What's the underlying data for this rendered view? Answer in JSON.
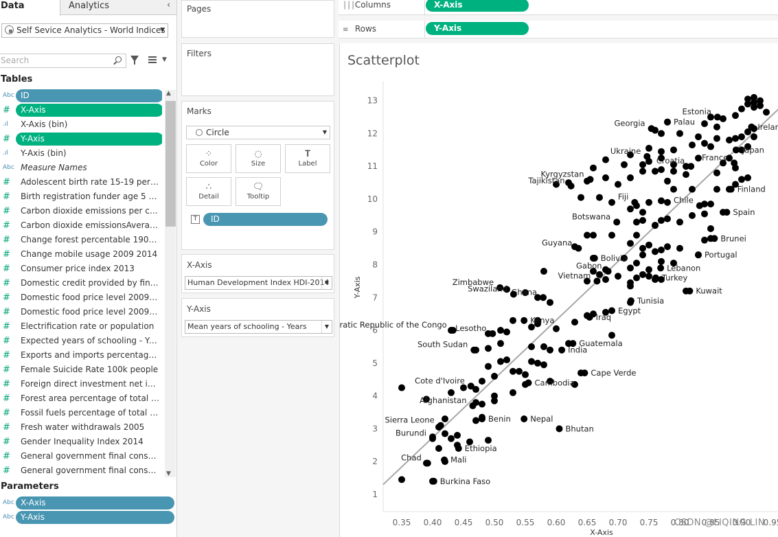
{
  "tabs": {
    "data": "Data",
    "analytics": "Analytics"
  },
  "datasource": {
    "name": "Self Sevice Analytics - World Indices"
  },
  "search": {
    "placeholder": "Search"
  },
  "sections": {
    "tables": "Tables",
    "parameters": "Parameters"
  },
  "fields": [
    {
      "icon": "Abc",
      "label": "ID",
      "style": "pill-blue"
    },
    {
      "icon": "#",
      "label": "X-Axis",
      "style": "pill-green"
    },
    {
      "icon": ".ıl",
      "label": "X-Axis (bin)",
      "style": "plain"
    },
    {
      "icon": "#",
      "label": "Y-Axis",
      "style": "pill-green"
    },
    {
      "icon": ".ıl",
      "label": "Y-Axis (bin)",
      "style": "plain"
    },
    {
      "icon": "Abc",
      "label": "Measure Names",
      "style": "italic"
    },
    {
      "icon": "#",
      "label": "Adolescent birth rate 15-19 per 100...",
      "style": "plain"
    },
    {
      "icon": "#",
      "label": "Birth registration funder age 5 200...",
      "style": "plain"
    },
    {
      "icon": "#",
      "label": "Carbon dioxide emissions per capit...",
      "style": "plain"
    },
    {
      "icon": "#",
      "label": "Carbon dioxide emissionsAverage ...",
      "style": "plain"
    },
    {
      "icon": "#",
      "label": "Change forest percentable 1900 to...",
      "style": "plain"
    },
    {
      "icon": "#",
      "label": "Change mobile usage 2009 2014",
      "style": "plain"
    },
    {
      "icon": "#",
      "label": "Consumer price index 2013",
      "style": "plain"
    },
    {
      "icon": "#",
      "label": "Domestic credit provided by financ...",
      "style": "plain"
    },
    {
      "icon": "#",
      "label": "Domestic food price level 2009 20...",
      "style": "plain"
    },
    {
      "icon": "#",
      "label": "Domestic food price level 2009-20...",
      "style": "plain"
    },
    {
      "icon": "#",
      "label": "Electrification rate or population",
      "style": "plain"
    },
    {
      "icon": "#",
      "label": "Expected years of schooling - Years",
      "style": "plain"
    },
    {
      "icon": "#",
      "label": "Exports and imports percentage G...",
      "style": "plain"
    },
    {
      "icon": "#",
      "label": "Female Suicide Rate 100k people",
      "style": "plain"
    },
    {
      "icon": "#",
      "label": "Foreign direct investment net inflo...",
      "style": "plain"
    },
    {
      "icon": "#",
      "label": "Forest area percentage of total lan...",
      "style": "plain"
    },
    {
      "icon": "#",
      "label": "Fossil fuels percentage of total 2012",
      "style": "plain"
    },
    {
      "icon": "#",
      "label": "Fresh water withdrawals 2005",
      "style": "plain"
    },
    {
      "icon": "#",
      "label": "Gender Inequality Index 2014",
      "style": "plain"
    },
    {
      "icon": "#",
      "label": "General government final consum...",
      "style": "plain"
    },
    {
      "icon": "#",
      "label": "General government final consum...",
      "style": "plain"
    }
  ],
  "parameters": [
    {
      "icon": "Abc",
      "label": "X-Axis"
    },
    {
      "icon": "Abc",
      "label": "Y-Axis"
    }
  ],
  "cards": {
    "pages": "Pages",
    "filters": "Filters",
    "marks": "Marks",
    "marks_type": "Circle",
    "mark_buttons": {
      "color": "Color",
      "size": "Size",
      "label": "Label",
      "detail": "Detail",
      "tooltip": "Tooltip"
    },
    "marks_pill": "ID",
    "xaxis_title": "X-Axis",
    "xaxis_value": "Human Development Index HDI-2014",
    "yaxis_title": "Y-Axis",
    "yaxis_value": "Mean years of schooling - Years"
  },
  "shelves": {
    "columns_label": "Columns",
    "columns_pill": "X-Axis",
    "rows_label": "Rows",
    "rows_pill": "Y-Axis"
  },
  "viz": {
    "title": "Scatterplot"
  },
  "watermark": "CSDN @LIQING LIN",
  "colors": {
    "blue_pill": "#4996b2",
    "green_pill": "#00b180",
    "dot": "#000000",
    "trend": "#a6a6a6"
  },
  "chart_data": {
    "type": "scatter",
    "title": "Scatterplot",
    "xlabel": "X-Axis",
    "ylabel": "Y-Axis",
    "xlim": [
      0.32,
      0.96
    ],
    "ylim": [
      0.6,
      13.6
    ],
    "xticks": [
      "0.35",
      "0.40",
      "0.45",
      "0.50",
      "0.55",
      "0.60",
      "0.65",
      "0.70",
      "0.75",
      "0.80",
      "0.85",
      "0.90",
      "0.95"
    ],
    "yticks": [
      "1",
      "2",
      "3",
      "4",
      "5",
      "6",
      "7",
      "8",
      "9",
      "10",
      "11",
      "12",
      "13"
    ],
    "grid": false,
    "trend_line": {
      "x": [
        0.32,
        0.96
      ],
      "y": [
        1.3,
        12.75
      ]
    },
    "labeled_points": [
      {
        "label": "Estonia",
        "x": 0.861,
        "y": 12.5
      },
      {
        "label": "Palau",
        "x": 0.78,
        "y": 12.35
      },
      {
        "label": "Georgia",
        "x": 0.754,
        "y": 12.15
      },
      {
        "label": "Ireland",
        "x": 0.916,
        "y": 12.2
      },
      {
        "label": "Ukraine",
        "x": 0.747,
        "y": 11.3
      },
      {
        "label": "Japan",
        "x": 0.891,
        "y": 11.5
      },
      {
        "label": "Kyrgyzstan",
        "x": 0.655,
        "y": 10.6
      },
      {
        "label": "France",
        "x": 0.888,
        "y": 11.1
      },
      {
        "label": "Croatia",
        "x": 0.818,
        "y": 11.0
      },
      {
        "label": "Fiji",
        "x": 0.727,
        "y": 9.9
      },
      {
        "label": "Finland",
        "x": 0.883,
        "y": 10.3
      },
      {
        "label": "Tajikistan",
        "x": 0.624,
        "y": 10.4
      },
      {
        "label": "Chile",
        "x": 0.832,
        "y": 9.8
      },
      {
        "label": "Spain",
        "x": 0.876,
        "y": 9.6
      },
      {
        "label": "Botswana",
        "x": 0.698,
        "y": 9.3
      },
      {
        "label": "Brunei",
        "x": 0.856,
        "y": 8.8
      },
      {
        "label": "Guyana",
        "x": 0.636,
        "y": 8.5
      },
      {
        "label": "Bolivia",
        "x": 0.662,
        "y": 8.2
      },
      {
        "label": "Portugal",
        "x": 0.83,
        "y": 8.3
      },
      {
        "label": "Gabon",
        "x": 0.684,
        "y": 7.8
      },
      {
        "label": "Lebanon",
        "x": 0.769,
        "y": 7.9
      },
      {
        "label": "Zimbabwe",
        "x": 0.509,
        "y": 7.3
      },
      {
        "label": "Ghana",
        "x": 0.579,
        "y": 7.0
      },
      {
        "label": "Vietnam",
        "x": 0.666,
        "y": 7.5
      },
      {
        "label": "Turkey",
        "x": 0.761,
        "y": 7.6
      },
      {
        "label": "Kuwait",
        "x": 0.816,
        "y": 7.2
      },
      {
        "label": "Swaziland",
        "x": 0.531,
        "y": 7.1
      },
      {
        "label": "Tunisia",
        "x": 0.721,
        "y": 6.9
      },
      {
        "label": "Democratic Republic of the Congo",
        "x": 0.433,
        "y": 6.0
      },
      {
        "label": "Egypt",
        "x": 0.69,
        "y": 6.6
      },
      {
        "label": "Kenya",
        "x": 0.548,
        "y": 6.3
      },
      {
        "label": "Iraq",
        "x": 0.654,
        "y": 6.4
      },
      {
        "label": "Lesotho",
        "x": 0.497,
        "y": 5.9
      },
      {
        "label": "South Sudan",
        "x": 0.467,
        "y": 5.4
      },
      {
        "label": "Guatemala",
        "x": 0.627,
        "y": 5.6
      },
      {
        "label": "India",
        "x": 0.609,
        "y": 5.4
      },
      {
        "label": "Cote d'Ivoire",
        "x": 0.462,
        "y": 4.3
      },
      {
        "label": "Cape Verde",
        "x": 0.646,
        "y": 4.7
      },
      {
        "label": "Cambodia",
        "x": 0.555,
        "y": 4.4
      },
      {
        "label": "Afghanistan",
        "x": 0.465,
        "y": 3.7
      },
      {
        "label": "Benin",
        "x": 0.48,
        "y": 3.3
      },
      {
        "label": "Sierra Leone",
        "x": 0.413,
        "y": 3.1
      },
      {
        "label": "Nepal",
        "x": 0.548,
        "y": 3.3
      },
      {
        "label": "Burundi",
        "x": 0.4,
        "y": 2.7
      },
      {
        "label": "Bhutan",
        "x": 0.605,
        "y": 3.0
      },
      {
        "label": "Ethiopia",
        "x": 0.442,
        "y": 2.4
      },
      {
        "label": "Chad",
        "x": 0.392,
        "y": 1.95
      },
      {
        "label": "Mali",
        "x": 0.419,
        "y": 2.05
      },
      {
        "label": "Burkina Faso",
        "x": 0.402,
        "y": 1.4
      }
    ],
    "points": [
      [
        0.35,
        1.45
      ],
      [
        0.4,
        1.4
      ],
      [
        0.39,
        1.95
      ],
      [
        0.42,
        2.0
      ],
      [
        0.41,
        2.4
      ],
      [
        0.44,
        2.5
      ],
      [
        0.43,
        2.7
      ],
      [
        0.4,
        2.75
      ],
      [
        0.42,
        2.85
      ],
      [
        0.44,
        2.8
      ],
      [
        0.46,
        2.6
      ],
      [
        0.49,
        2.65
      ],
      [
        0.41,
        3.05
      ],
      [
        0.42,
        3.3
      ],
      [
        0.47,
        3.25
      ],
      [
        0.48,
        3.35
      ],
      [
        0.47,
        3.8
      ],
      [
        0.48,
        3.75
      ],
      [
        0.5,
        3.85
      ],
      [
        0.5,
        4.0
      ],
      [
        0.35,
        4.25
      ],
      [
        0.39,
        3.9
      ],
      [
        0.43,
        4.1
      ],
      [
        0.45,
        4.25
      ],
      [
        0.47,
        4.2
      ],
      [
        0.48,
        4.45
      ],
      [
        0.5,
        4.6
      ],
      [
        0.53,
        4.75
      ],
      [
        0.54,
        4.75
      ],
      [
        0.55,
        4.65
      ],
      [
        0.53,
        4.1
      ],
      [
        0.55,
        4.35
      ],
      [
        0.59,
        4.45
      ],
      [
        0.63,
        4.35
      ],
      [
        0.64,
        4.7
      ],
      [
        0.49,
        4.9
      ],
      [
        0.51,
        5.05
      ],
      [
        0.52,
        5.1
      ],
      [
        0.56,
        5.05
      ],
      [
        0.57,
        5.0
      ],
      [
        0.58,
        4.95
      ],
      [
        0.47,
        5.4
      ],
      [
        0.49,
        5.45
      ],
      [
        0.51,
        5.6
      ],
      [
        0.56,
        5.5
      ],
      [
        0.58,
        5.5
      ],
      [
        0.59,
        5.4
      ],
      [
        0.62,
        5.6
      ],
      [
        0.52,
        5.95
      ],
      [
        0.49,
        5.9
      ],
      [
        0.51,
        6.0
      ],
      [
        0.53,
        6.3
      ],
      [
        0.56,
        6.1
      ],
      [
        0.57,
        6.2
      ],
      [
        0.57,
        6.3
      ],
      [
        0.6,
        6.05
      ],
      [
        0.63,
        6.25
      ],
      [
        0.65,
        6.45
      ],
      [
        0.66,
        6.5
      ],
      [
        0.68,
        6.55
      ],
      [
        0.69,
        5.85
      ],
      [
        0.43,
        6.0
      ],
      [
        0.59,
        6.85
      ],
      [
        0.57,
        7.0
      ],
      [
        0.72,
        6.85
      ],
      [
        0.52,
        7.25
      ],
      [
        0.55,
        7.15
      ],
      [
        0.81,
        7.2
      ],
      [
        0.58,
        7.8
      ],
      [
        0.65,
        7.5
      ],
      [
        0.68,
        7.55
      ],
      [
        0.7,
        7.65
      ],
      [
        0.72,
        7.45
      ],
      [
        0.72,
        7.35
      ],
      [
        0.73,
        7.6
      ],
      [
        0.74,
        7.7
      ],
      [
        0.75,
        7.65
      ],
      [
        0.76,
        7.55
      ],
      [
        0.77,
        7.55
      ],
      [
        0.66,
        7.8
      ],
      [
        0.67,
        7.7
      ],
      [
        0.68,
        7.85
      ],
      [
        0.72,
        7.9
      ],
      [
        0.73,
        8.05
      ],
      [
        0.75,
        7.85
      ],
      [
        0.77,
        8.1
      ],
      [
        0.79,
        8.05
      ],
      [
        0.66,
        8.2
      ],
      [
        0.71,
        8.2
      ],
      [
        0.74,
        8.3
      ],
      [
        0.76,
        8.4
      ],
      [
        0.77,
        8.45
      ],
      [
        0.78,
        8.55
      ],
      [
        0.72,
        8.65
      ],
      [
        0.74,
        8.5
      ],
      [
        0.75,
        8.6
      ],
      [
        0.8,
        8.5
      ],
      [
        0.83,
        8.3
      ],
      [
        0.84,
        8.75
      ],
      [
        0.85,
        8.8
      ],
      [
        0.85,
        9.1
      ],
      [
        0.63,
        8.55
      ],
      [
        0.65,
        8.9
      ],
      [
        0.66,
        8.9
      ],
      [
        0.69,
        8.9
      ],
      [
        0.73,
        8.9
      ],
      [
        0.76,
        9.2
      ],
      [
        0.77,
        9.35
      ],
      [
        0.78,
        9.4
      ],
      [
        0.73,
        9.3
      ],
      [
        0.74,
        9.35
      ],
      [
        0.76,
        9.2
      ],
      [
        0.8,
        9.3
      ],
      [
        0.82,
        9.5
      ],
      [
        0.84,
        9.55
      ],
      [
        0.73,
        9.8
      ],
      [
        0.75,
        9.9
      ],
      [
        0.78,
        9.9
      ],
      [
        0.84,
        9.85
      ],
      [
        0.85,
        9.85
      ],
      [
        0.87,
        9.6
      ],
      [
        0.64,
        10.05
      ],
      [
        0.67,
        10.05
      ],
      [
        0.69,
        9.9
      ],
      [
        0.72,
        9.7
      ],
      [
        0.74,
        9.6
      ],
      [
        0.77,
        9.95
      ],
      [
        0.79,
        10.3
      ],
      [
        0.82,
        10.3
      ],
      [
        0.86,
        10.3
      ],
      [
        0.88,
        10.3
      ],
      [
        0.89,
        10.45
      ],
      [
        0.9,
        10.6
      ],
      [
        0.91,
        10.65
      ],
      [
        0.6,
        10.45
      ],
      [
        0.62,
        10.5
      ],
      [
        0.65,
        10.55
      ],
      [
        0.68,
        10.65
      ],
      [
        0.7,
        10.45
      ],
      [
        0.72,
        10.65
      ],
      [
        0.74,
        10.85
      ],
      [
        0.76,
        10.85
      ],
      [
        0.77,
        10.9
      ],
      [
        0.78,
        10.55
      ],
      [
        0.79,
        10.85
      ],
      [
        0.81,
        10.75
      ],
      [
        0.86,
        10.8
      ],
      [
        0.89,
        10.95
      ],
      [
        0.66,
        10.95
      ],
      [
        0.68,
        11.2
      ],
      [
        0.71,
        11.05
      ],
      [
        0.74,
        11.05
      ],
      [
        0.75,
        11.15
      ],
      [
        0.77,
        11.25
      ],
      [
        0.79,
        11.05
      ],
      [
        0.81,
        11.0
      ],
      [
        0.83,
        11.25
      ],
      [
        0.87,
        11.1
      ],
      [
        0.88,
        11.25
      ],
      [
        0.9,
        11.5
      ],
      [
        0.91,
        11.6
      ],
      [
        0.72,
        11.35
      ],
      [
        0.75,
        11.55
      ],
      [
        0.77,
        11.45
      ],
      [
        0.79,
        11.5
      ],
      [
        0.82,
        11.65
      ],
      [
        0.84,
        11.7
      ],
      [
        0.85,
        11.6
      ],
      [
        0.88,
        11.8
      ],
      [
        0.9,
        11.9
      ],
      [
        0.92,
        11.9
      ],
      [
        0.77,
        12.0
      ],
      [
        0.8,
        12.0
      ],
      [
        0.83,
        11.9
      ],
      [
        0.86,
        11.85
      ],
      [
        0.89,
        11.85
      ],
      [
        0.91,
        12.05
      ],
      [
        0.92,
        12.15
      ],
      [
        0.86,
        12.2
      ],
      [
        0.87,
        12.45
      ],
      [
        0.89,
        12.55
      ],
      [
        0.9,
        12.75
      ],
      [
        0.91,
        12.9
      ],
      [
        0.93,
        12.85
      ],
      [
        0.94,
        12.65
      ],
      [
        0.92,
        13.1
      ],
      [
        0.92,
        12.95
      ],
      [
        0.93,
        13.0
      ],
      [
        0.91,
        13.05
      ],
      [
        0.78,
        12.35
      ],
      [
        0.76,
        12.1
      ],
      [
        0.85,
        12.5
      ],
      [
        0.84,
        12.3
      ],
      [
        0.92,
        12.8
      ]
    ]
  }
}
